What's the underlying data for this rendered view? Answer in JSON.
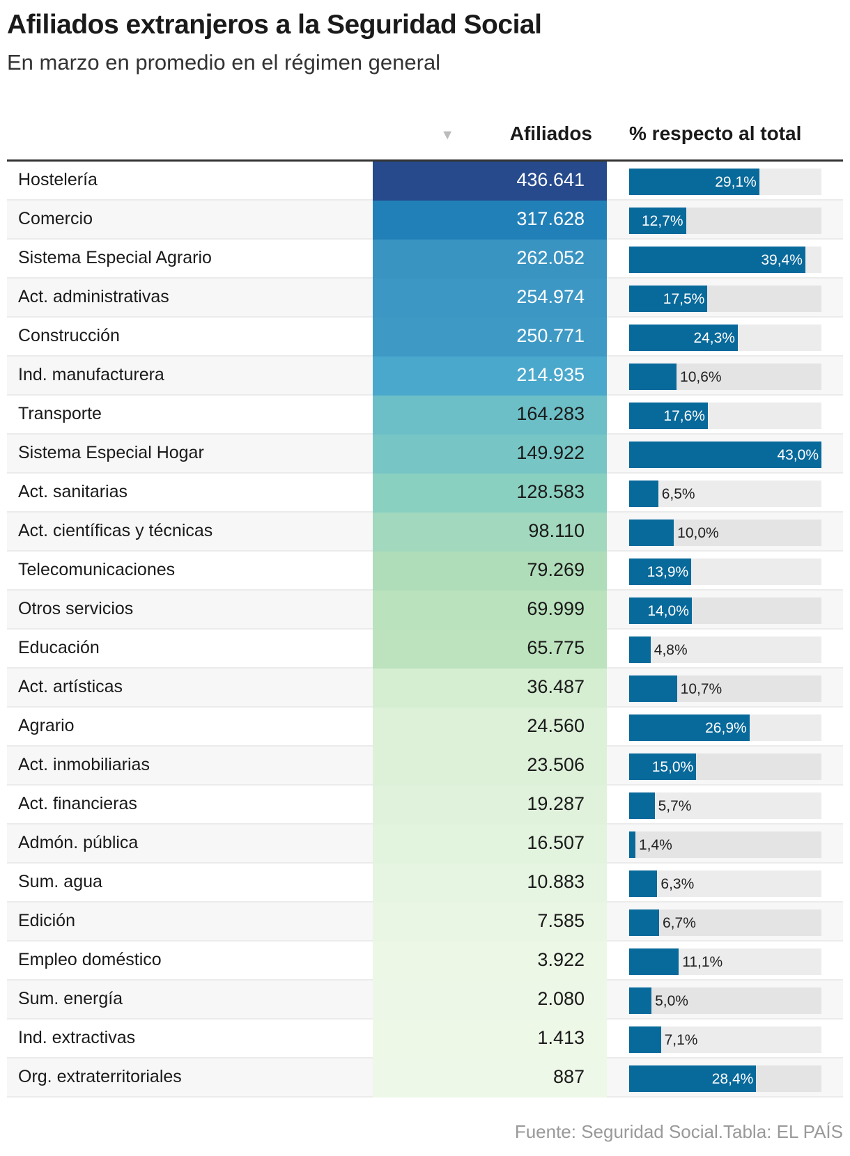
{
  "title": "Afiliados extranjeros a la Seguridad Social",
  "subtitle": "En marzo en promedio en el régimen general",
  "source": "Fuente: Seguridad Social.Tabla: EL PAÍS",
  "chart_data": {
    "type": "table",
    "columns": [
      "Afiliados",
      "% respecto al total"
    ],
    "sort_icon": "triangle-down-icon",
    "sorted_by": "Afiliados",
    "bar_color": "#08699b",
    "bar_max": 43.0,
    "rows": [
      {
        "name": "Hostelería",
        "afiliados": "436.641",
        "value": 436641,
        "pct": 29.1,
        "pct_label": "29,1%",
        "color": "#264a8c"
      },
      {
        "name": "Comercio",
        "afiliados": "317.628",
        "value": 317628,
        "pct": 12.7,
        "pct_label": "12,7%",
        "color": "#2280b8"
      },
      {
        "name": "Sistema Especial Agrario",
        "afiliados": "262.052",
        "value": 262052,
        "pct": 39.4,
        "pct_label": "39,4%",
        "color": "#3a94c2"
      },
      {
        "name": "Act. administrativas",
        "afiliados": "254.974",
        "value": 254974,
        "pct": 17.5,
        "pct_label": "17,5%",
        "color": "#3c97c4"
      },
      {
        "name": "Construcción",
        "afiliados": "250.771",
        "value": 250771,
        "pct": 24.3,
        "pct_label": "24,3%",
        "color": "#3e9ac5"
      },
      {
        "name": "Ind. manufacturera",
        "afiliados": "214.935",
        "value": 214935,
        "pct": 10.6,
        "pct_label": "10,6%",
        "color": "#4aa8cc"
      },
      {
        "name": "Transporte",
        "afiliados": "164.283",
        "value": 164283,
        "pct": 17.6,
        "pct_label": "17,6%",
        "color": "#6cbfc6"
      },
      {
        "name": "Sistema Especial Hogar",
        "afiliados": "149.922",
        "value": 149922,
        "pct": 43.0,
        "pct_label": "43,0%",
        "color": "#77c6c5"
      },
      {
        "name": "Act. sanitarias",
        "afiliados": "128.583",
        "value": 128583,
        "pct": 6.5,
        "pct_label": "6,5%",
        "color": "#8ad0c0"
      },
      {
        "name": "Act. científicas y técnicas",
        "afiliados": "98.110",
        "value": 98110,
        "pct": 10.0,
        "pct_label": "10,0%",
        "color": "#a2d8bd"
      },
      {
        "name": "Telecomunicaciones",
        "afiliados": "79.269",
        "value": 79269,
        "pct": 13.9,
        "pct_label": "13,9%",
        "color": "#b0ddb9"
      },
      {
        "name": "Otros servicios",
        "afiliados": "69.999",
        "value": 69999,
        "pct": 14.0,
        "pct_label": "14,0%",
        "color": "#b9e2bd"
      },
      {
        "name": "Educación",
        "afiliados": "65.775",
        "value": 65775,
        "pct": 4.8,
        "pct_label": "4,8%",
        "color": "#bce3be"
      },
      {
        "name": "Act. artísticas",
        "afiliados": "36.487",
        "value": 36487,
        "pct": 10.7,
        "pct_label": "10,7%",
        "color": "#d5eed2"
      },
      {
        "name": "Agrario",
        "afiliados": "24.560",
        "value": 24560,
        "pct": 26.9,
        "pct_label": "26,9%",
        "color": "#dcf1d8"
      },
      {
        "name": "Act. inmobiliarias",
        "afiliados": "23.506",
        "value": 23506,
        "pct": 15.0,
        "pct_label": "15,0%",
        "color": "#ddf1d9"
      },
      {
        "name": "Act. financieras",
        "afiliados": "19.287",
        "value": 19287,
        "pct": 5.7,
        "pct_label": "5,7%",
        "color": "#e0f2dc"
      },
      {
        "name": "Admón. pública",
        "afiliados": "16.507",
        "value": 16507,
        "pct": 1.4,
        "pct_label": "1,4%",
        "color": "#e2f3de"
      },
      {
        "name": "Sum. agua",
        "afiliados": "10.883",
        "value": 10883,
        "pct": 6.3,
        "pct_label": "6,3%",
        "color": "#e6f5e2"
      },
      {
        "name": "Edición",
        "afiliados": "7.585",
        "value": 7585,
        "pct": 6.7,
        "pct_label": "6,7%",
        "color": "#eaf6e4"
      },
      {
        "name": "Empleo doméstico",
        "afiliados": "3.922",
        "value": 3922,
        "pct": 11.1,
        "pct_label": "11,1%",
        "color": "#ecf7e6"
      },
      {
        "name": "Sum. energía",
        "afiliados": "2.080",
        "value": 2080,
        "pct": 5.0,
        "pct_label": "5,0%",
        "color": "#edf7e7"
      },
      {
        "name": "Ind. extractivas",
        "afiliados": "1.413",
        "value": 1413,
        "pct": 7.1,
        "pct_label": "7,1%",
        "color": "#eef8e7"
      },
      {
        "name": "Org. extraterritoriales",
        "afiliados": "887",
        "value": 887,
        "pct": 28.4,
        "pct_label": "28,4%",
        "color": "#eef8e8"
      }
    ]
  }
}
